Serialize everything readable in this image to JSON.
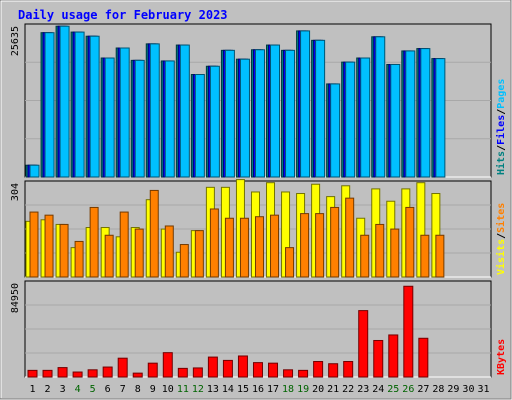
{
  "chart_data": {
    "type": "bar",
    "title": "Daily usage for February 2023",
    "categories": [
      "1",
      "2",
      "3",
      "4",
      "5",
      "6",
      "7",
      "8",
      "9",
      "10",
      "11",
      "12",
      "13",
      "14",
      "15",
      "16",
      "17",
      "18",
      "19",
      "20",
      "21",
      "22",
      "23",
      "24",
      "25",
      "26",
      "27",
      "28",
      "29",
      "30",
      "31"
    ],
    "weekend_days": [
      "4",
      "5",
      "11",
      "12",
      "18",
      "19",
      "25",
      "26"
    ],
    "grid": true,
    "panels": [
      {
        "id": "hits_files_pages",
        "max_label": "25635",
        "max": 25635,
        "side_labels": [
          {
            "text": "Hits",
            "color": "#008080"
          },
          {
            "text": "/",
            "color": "#000000"
          },
          {
            "text": "Files",
            "color": "#0000ff"
          },
          {
            "text": "/",
            "color": "#000000"
          },
          {
            "text": "Pages",
            "color": "#00c0ff"
          }
        ],
        "series": [
          {
            "name": "Hits",
            "color": "#008080",
            "values": [
              2000,
              24500,
              25600,
              24600,
              23900,
              20200,
              21900,
              19800,
              22600,
              19700,
              22400,
              17400,
              18800,
              21500,
              20000,
              21600,
              22400,
              21500,
              24800,
              23200,
              15800,
              19500,
              20200,
              23800,
              19100,
              21400,
              21800,
              20100,
              0,
              0,
              0
            ]
          },
          {
            "name": "Files",
            "color": "#0000ff",
            "values": [
              2000,
              24500,
              25600,
              24600,
              23900,
              20200,
              21900,
              19800,
              22600,
              19700,
              22400,
              17400,
              18800,
              21500,
              20000,
              21600,
              22400,
              21500,
              24800,
              23200,
              15800,
              19500,
              20200,
              23800,
              19100,
              21400,
              21800,
              20100,
              0,
              0,
              0
            ]
          },
          {
            "name": "Pages",
            "color": "#00c0ff",
            "values": [
              2000,
              24500,
              25600,
              24600,
              23900,
              20200,
              21900,
              19800,
              22600,
              19700,
              22400,
              17400,
              18800,
              21500,
              20000,
              21600,
              22400,
              21500,
              24800,
              23200,
              15800,
              19500,
              20200,
              23800,
              19100,
              21400,
              21800,
              20100,
              0,
              0,
              0
            ]
          }
        ]
      },
      {
        "id": "visits_sites",
        "max_label": "304",
        "max": 304,
        "side_labels": [
          {
            "text": "Visits",
            "color": "#ffff00"
          },
          {
            "text": "/",
            "color": "#000000"
          },
          {
            "text": "Sites",
            "color": "#ff8000"
          }
        ],
        "series": [
          {
            "name": "Visits",
            "color": "#ffff00",
            "values": [
              180,
              185,
              170,
              95,
              160,
              160,
              130,
              160,
              250,
              155,
              80,
              150,
              290,
              290,
              315,
              275,
              305,
              275,
              270,
              300,
              260,
              295,
              190,
              285,
              245,
              285,
              305,
              270,
              0,
              0,
              0
            ]
          },
          {
            "name": "Sites",
            "color": "#ff8000",
            "values": [
              210,
              200,
              170,
              115,
              225,
              135,
              210,
              155,
              280,
              165,
              105,
              150,
              220,
              190,
              190,
              195,
              200,
              95,
              205,
              205,
              225,
              255,
              135,
              170,
              155,
              225,
              135,
              135,
              0,
              0,
              0
            ]
          }
        ]
      },
      {
        "id": "kbytes",
        "max_label": "84950",
        "max": 84950,
        "side_labels": [
          {
            "text": "KBytes",
            "color": "#ff0000"
          }
        ],
        "series": [
          {
            "name": "KBytes",
            "color": "#ff0000",
            "values": [
              6000,
              6000,
              8500,
              4500,
              6500,
              9000,
              17000,
              3500,
              12500,
              22000,
              7800,
              8200,
              18000,
              15000,
              19000,
              13000,
              12500,
              6500,
              6000,
              14000,
              12000,
              14000,
              60000,
              33000,
              38000,
              82000,
              35000,
              0,
              0,
              0,
              0
            ]
          }
        ]
      }
    ]
  },
  "colors": {
    "background": "#c0c0c0",
    "title": "#0000ff",
    "weekday_tick": "#000000",
    "weekend_tick": "#006400"
  }
}
